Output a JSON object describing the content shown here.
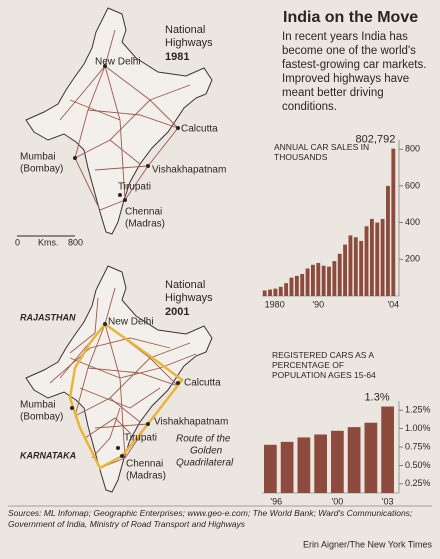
{
  "header": {
    "title": "India on the Move",
    "intro": "In recent years India has become one of the world's fastest-growing car markets. Improved highways have meant better driving conditions."
  },
  "maps": [
    {
      "title_lines": [
        "National",
        "Highways"
      ],
      "year": "1981",
      "cities": {
        "delhi": [
          "New Delhi"
        ],
        "calcutta": [
          "Calcutta"
        ],
        "mumbai": [
          "Mumbai",
          "(Bombay)"
        ],
        "vizag": [
          "Vishakhapatnam"
        ],
        "tirupati": [
          "Tirupati"
        ],
        "chennai": [
          "Chennai",
          "(Madras)"
        ]
      },
      "scale": [
        "0",
        "Kms.",
        "800"
      ]
    },
    {
      "title_lines": [
        "National",
        "Highways"
      ],
      "year": "2001",
      "cities": {
        "delhi": [
          "New Delhi"
        ],
        "calcutta": [
          "Calcutta"
        ],
        "mumbai": [
          "Mumbai",
          "(Bombay)"
        ],
        "vizag": [
          "Vishakhapatnam"
        ],
        "tirupati": [
          "Tirupati"
        ],
        "chennai": [
          "Chennai",
          "(Madras)"
        ]
      },
      "states": [
        "RAJASTHAN",
        "KARNATAKA"
      ],
      "route_lines": [
        "Route of the",
        "Golden",
        "Quadrilateral"
      ]
    }
  ],
  "chart_data": [
    {
      "type": "bar",
      "title": "ANNUAL CAR SALES IN THOUSANDS",
      "categories": [
        "1980",
        null,
        null,
        null,
        null,
        null,
        null,
        null,
        null,
        null,
        "'90",
        null,
        null,
        null,
        null,
        null,
        null,
        null,
        null,
        null,
        null,
        null,
        null,
        null,
        "'04"
      ],
      "values": [
        30,
        35,
        40,
        50,
        70,
        100,
        110,
        120,
        150,
        170,
        180,
        165,
        160,
        190,
        230,
        280,
        330,
        320,
        300,
        380,
        420,
        400,
        420,
        600,
        802.792
      ],
      "value_labels": [
        null,
        null,
        null,
        null,
        null,
        null,
        null,
        null,
        null,
        null,
        null,
        null,
        null,
        null,
        null,
        null,
        null,
        null,
        null,
        null,
        null,
        null,
        null,
        null,
        "802,792"
      ],
      "color": "#8c4b3d",
      "ylim": [
        0,
        850
      ],
      "yticks": [
        200,
        400,
        600,
        800
      ]
    },
    {
      "type": "bar",
      "title": "REGISTERED CARS AS A PERCENTAGE OF POPULATION AGES 15-64",
      "categories": [
        "'96",
        null,
        null,
        null,
        "'00",
        null,
        null,
        "'03"
      ],
      "values": [
        0.78,
        0.82,
        0.88,
        0.92,
        0.97,
        1.02,
        1.08,
        1.3
      ],
      "value_labels": [
        null,
        null,
        null,
        null,
        null,
        null,
        null,
        "1.3%"
      ],
      "color": "#8c4b3d",
      "ylim": [
        0.125,
        1.375
      ],
      "yticks": [
        {
          "value": 0.25,
          "label": "0.25%"
        },
        {
          "value": 0.5,
          "label": "0.50%"
        },
        {
          "value": 0.75,
          "label": "0.75%"
        },
        {
          "value": 1.0,
          "label": "1.00%"
        },
        {
          "value": 1.25,
          "label": "1.25%"
        }
      ]
    }
  ],
  "footer": {
    "sources": "Sources: ML Infomap; Geographic Enterprises; www.geo-e.com; The World Bank; Ward's Communications; Government of India, Ministry of Road Transport and Highways",
    "credit": "Erin Aigner/The New York Times"
  }
}
